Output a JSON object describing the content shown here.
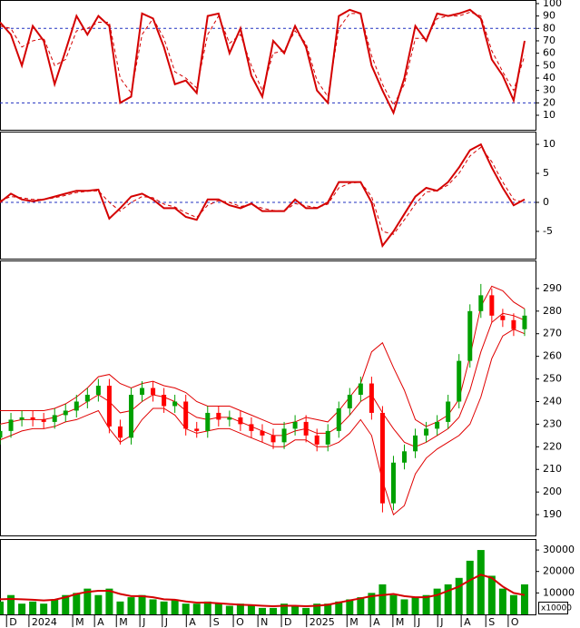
{
  "chart_data": [
    {
      "type": "line",
      "xlim": [
        0,
        98
      ],
      "ylim": [
        -1.7,
        102.9
      ],
      "yticks": [
        10,
        20,
        30,
        40,
        50,
        60,
        70,
        80,
        90,
        100
      ],
      "reference_lines": [
        80,
        20
      ],
      "reference_color": "#2030c0",
      "x": [
        0,
        2,
        4,
        6,
        8,
        10,
        12,
        14,
        16,
        18,
        20,
        22,
        24,
        26,
        28,
        30,
        32,
        34,
        36,
        38,
        40,
        42,
        44,
        46,
        48,
        50,
        52,
        54,
        56,
        58,
        60,
        62,
        64,
        66,
        68,
        70,
        72,
        74,
        76,
        78,
        80,
        82,
        84,
        86,
        88,
        90,
        92,
        94,
        96
      ],
      "series": [
        {
          "color": "#d40000",
          "style": "solid",
          "values": [
            85,
            75,
            50,
            82,
            70,
            35,
            62,
            90,
            75,
            90,
            82,
            20,
            25,
            92,
            88,
            65,
            35,
            38,
            28,
            90,
            92,
            60,
            80,
            42,
            25,
            70,
            60,
            82,
            65,
            30,
            20,
            90,
            95,
            92,
            50,
            30,
            12,
            40,
            82,
            70,
            92,
            90,
            92,
            95,
            88,
            55,
            42,
            22,
            70
          ]
        },
        {
          "color": "#d40000",
          "style": "dashed",
          "values": [
            82,
            80,
            65,
            70,
            72,
            50,
            55,
            78,
            80,
            85,
            85,
            40,
            28,
            75,
            88,
            72,
            45,
            40,
            32,
            75,
            90,
            68,
            75,
            50,
            30,
            60,
            62,
            78,
            68,
            38,
            25,
            80,
            92,
            92,
            58,
            35,
            18,
            35,
            72,
            72,
            88,
            90,
            90,
            93,
            90,
            62,
            45,
            30,
            58
          ]
        }
      ]
    },
    {
      "type": "line",
      "xlim": [
        0,
        98
      ],
      "ylim": [
        -9.7,
        12.2
      ],
      "yticks": [
        10,
        5,
        0,
        -5
      ],
      "reference_lines": [
        0
      ],
      "reference_color": "#2030c0",
      "x": [
        0,
        2,
        4,
        6,
        8,
        10,
        12,
        14,
        16,
        18,
        20,
        22,
        24,
        26,
        28,
        30,
        32,
        34,
        36,
        38,
        40,
        42,
        44,
        46,
        48,
        50,
        52,
        54,
        56,
        58,
        60,
        62,
        64,
        66,
        68,
        70,
        72,
        74,
        76,
        78,
        80,
        82,
        84,
        86,
        88,
        90,
        92,
        94,
        96
      ],
      "series": [
        {
          "color": "#d40000",
          "style": "solid",
          "values": [
            0,
            1.5,
            0.5,
            0.2,
            0.5,
            1,
            1.5,
            2,
            2,
            2.2,
            -2.8,
            -1,
            1,
            1.5,
            0.5,
            -1,
            -1,
            -2.5,
            -3,
            0.5,
            0.5,
            -0.5,
            -1,
            -0.2,
            -1.5,
            -1.5,
            -1.5,
            0.5,
            -1,
            -1,
            0,
            3.5,
            3.5,
            3.5,
            0,
            -7.5,
            -5,
            -2,
            1,
            2.5,
            2,
            3.5,
            6,
            9,
            10,
            6,
            2.5,
            -0.5,
            0.5
          ]
        },
        {
          "color": "#d40000",
          "style": "dashed",
          "values": [
            0.3,
            1,
            0.8,
            0.5,
            0.5,
            0.8,
            1.2,
            1.7,
            1.9,
            2,
            0,
            -1.5,
            0,
            1,
            0.8,
            -0.3,
            -0.8,
            -1.8,
            -2.6,
            -0.5,
            0.3,
            0,
            -0.7,
            -0.4,
            -1,
            -1.4,
            -1.5,
            -0.2,
            -0.6,
            -0.9,
            -0.3,
            2.5,
            3.3,
            3.5,
            1,
            -5,
            -5.5,
            -3,
            -0.3,
            1.8,
            2,
            3,
            5,
            8,
            9.5,
            7,
            3.5,
            0.5,
            0
          ]
        }
      ]
    },
    {
      "type": "candlestick",
      "xlim": [
        0,
        98
      ],
      "ylim": [
        180.8,
        302.4
      ],
      "yticks": [
        190,
        200,
        210,
        220,
        230,
        240,
        250,
        260,
        270,
        280,
        290
      ],
      "up_color": "#00a000",
      "down_color": "#ff0000",
      "x": [
        0,
        2,
        4,
        6,
        8,
        10,
        12,
        14,
        16,
        18,
        20,
        22,
        24,
        26,
        28,
        30,
        32,
        34,
        36,
        38,
        40,
        42,
        44,
        46,
        48,
        50,
        52,
        54,
        56,
        58,
        60,
        62,
        64,
        66,
        68,
        70,
        72,
        74,
        76,
        78,
        80,
        82,
        84,
        86,
        88,
        90,
        92,
        94,
        96
      ],
      "open": [
        224,
        227,
        232,
        233,
        232,
        231,
        234,
        236,
        240,
        243,
        247,
        229,
        224,
        243,
        246,
        243,
        238,
        240,
        228,
        227,
        235,
        232,
        233,
        230,
        227,
        225,
        222,
        228,
        231,
        225,
        221,
        227,
        237,
        243,
        248,
        235,
        195,
        213,
        218,
        225,
        228,
        231,
        240,
        258,
        280,
        287,
        278,
        276,
        272
      ],
      "high": [
        230,
        235,
        236,
        236,
        235,
        237,
        239,
        243,
        246,
        250,
        250,
        232,
        246,
        249,
        249,
        246,
        243,
        243,
        231,
        238,
        238,
        236,
        236,
        233,
        230,
        228,
        231,
        234,
        234,
        228,
        230,
        240,
        246,
        251,
        251,
        238,
        216,
        221,
        228,
        231,
        234,
        243,
        261,
        283,
        292,
        290,
        281,
        279,
        281
      ],
      "low": [
        221,
        224,
        229,
        229,
        228,
        228,
        231,
        233,
        237,
        240,
        226,
        221,
        221,
        240,
        240,
        235,
        235,
        225,
        224,
        224,
        229,
        229,
        227,
        224,
        222,
        219,
        219,
        225,
        222,
        218,
        218,
        224,
        234,
        240,
        232,
        191,
        192,
        210,
        215,
        222,
        225,
        228,
        237,
        255,
        277,
        275,
        273,
        269,
        269
      ],
      "close": [
        227,
        232,
        233,
        232,
        231,
        234,
        236,
        240,
        243,
        247,
        229,
        224,
        243,
        246,
        243,
        238,
        240,
        228,
        227,
        235,
        232,
        233,
        230,
        227,
        225,
        222,
        228,
        231,
        225,
        221,
        227,
        237,
        243,
        248,
        235,
        195,
        213,
        218,
        225,
        228,
        231,
        240,
        258,
        280,
        287,
        278,
        276,
        272,
        278
      ],
      "bands": [
        {
          "color": "#e00000",
          "values": [
            236,
            236,
            236,
            236,
            236,
            237,
            239,
            242,
            246,
            251,
            252,
            248,
            246,
            248,
            249,
            247,
            246,
            244,
            240,
            238,
            238,
            238,
            236,
            234,
            232,
            230,
            230,
            231,
            233,
            232,
            231,
            236,
            242,
            248,
            262,
            266,
            255,
            245,
            232,
            229,
            231,
            234,
            241,
            260,
            282,
            291,
            289,
            284,
            281
          ]
        },
        {
          "color": "#e00000",
          "values": [
            230,
            231,
            232,
            232,
            232,
            233,
            235,
            237,
            240,
            243,
            240,
            235,
            236,
            240,
            243,
            242,
            240,
            236,
            233,
            232,
            233,
            233,
            231,
            229,
            227,
            225,
            225,
            227,
            228,
            226,
            226,
            229,
            234,
            240,
            243,
            235,
            228,
            222,
            220,
            222,
            225,
            228,
            233,
            245,
            262,
            275,
            279,
            278,
            276
          ]
        },
        {
          "color": "#e00000",
          "values": [
            223,
            225,
            227,
            228,
            228,
            229,
            231,
            232,
            234,
            236,
            228,
            222,
            225,
            232,
            237,
            237,
            234,
            228,
            226,
            227,
            228,
            228,
            226,
            224,
            222,
            220,
            220,
            223,
            223,
            220,
            220,
            222,
            226,
            232,
            225,
            205,
            190,
            194,
            208,
            215,
            219,
            222,
            225,
            230,
            242,
            259,
            269,
            272,
            270
          ]
        }
      ]
    },
    {
      "type": "bar",
      "xlim": [
        0,
        98
      ],
      "ylim": [
        0,
        35100
      ],
      "yticks": [
        30000,
        20000,
        10000
      ],
      "unit_label": "x10000",
      "color": "#00a000",
      "ma_color": "#d40000",
      "x": [
        0,
        2,
        4,
        6,
        8,
        10,
        12,
        14,
        16,
        18,
        20,
        22,
        24,
        26,
        28,
        30,
        32,
        34,
        36,
        38,
        40,
        42,
        44,
        46,
        48,
        50,
        52,
        54,
        56,
        58,
        60,
        62,
        64,
        66,
        68,
        70,
        72,
        74,
        76,
        78,
        80,
        82,
        84,
        86,
        88,
        90,
        92,
        94,
        96
      ],
      "values": [
        6000,
        9000,
        5000,
        6000,
        5000,
        7000,
        9000,
        10000,
        12000,
        9000,
        12000,
        6000,
        8000,
        9000,
        7000,
        6000,
        7000,
        5000,
        5000,
        6000,
        5000,
        4000,
        5000,
        4000,
        3000,
        3000,
        5000,
        4000,
        3000,
        5000,
        5000,
        6000,
        7000,
        8000,
        10000,
        14000,
        9000,
        7000,
        8000,
        9000,
        12000,
        14000,
        17000,
        25000,
        30000,
        18000,
        12000,
        9000,
        14000
      ],
      "ma": [
        7000,
        7200,
        7000,
        6800,
        6500,
        6800,
        8000,
        9500,
        10500,
        11000,
        11000,
        9500,
        8500,
        8500,
        8000,
        7000,
        6800,
        6000,
        5500,
        5500,
        5200,
        4800,
        4500,
        4300,
        4000,
        3800,
        4000,
        4000,
        3800,
        4000,
        4500,
        5500,
        6500,
        7500,
        8500,
        9000,
        9500,
        8500,
        8000,
        8000,
        9000,
        11000,
        13000,
        16000,
        18500,
        17000,
        13000,
        10000,
        9000
      ],
      "xticks": [
        {
          "value": 1.2,
          "label": "D"
        },
        {
          "value": 5.3,
          "label": "2024"
        },
        {
          "value": 13.3,
          "label": "M"
        },
        {
          "value": 17.3,
          "label": "A"
        },
        {
          "value": 21.3,
          "label": "M"
        },
        {
          "value": 25.6,
          "label": "J"
        },
        {
          "value": 29.7,
          "label": "J"
        },
        {
          "value": 34.1,
          "label": "A"
        },
        {
          "value": 38.5,
          "label": "S"
        },
        {
          "value": 42.7,
          "label": "O"
        },
        {
          "value": 47.2,
          "label": "N"
        },
        {
          "value": 51.5,
          "label": "D"
        },
        {
          "value": 56.1,
          "label": "2025"
        },
        {
          "value": 63.5,
          "label": "M"
        },
        {
          "value": 67.8,
          "label": "A"
        },
        {
          "value": 71.9,
          "label": "M"
        },
        {
          "value": 75.9,
          "label": "J"
        },
        {
          "value": 80.1,
          "label": "J"
        },
        {
          "value": 84.4,
          "label": "A"
        },
        {
          "value": 88.9,
          "label": "S"
        },
        {
          "value": 93.0,
          "label": "O"
        }
      ]
    }
  ]
}
